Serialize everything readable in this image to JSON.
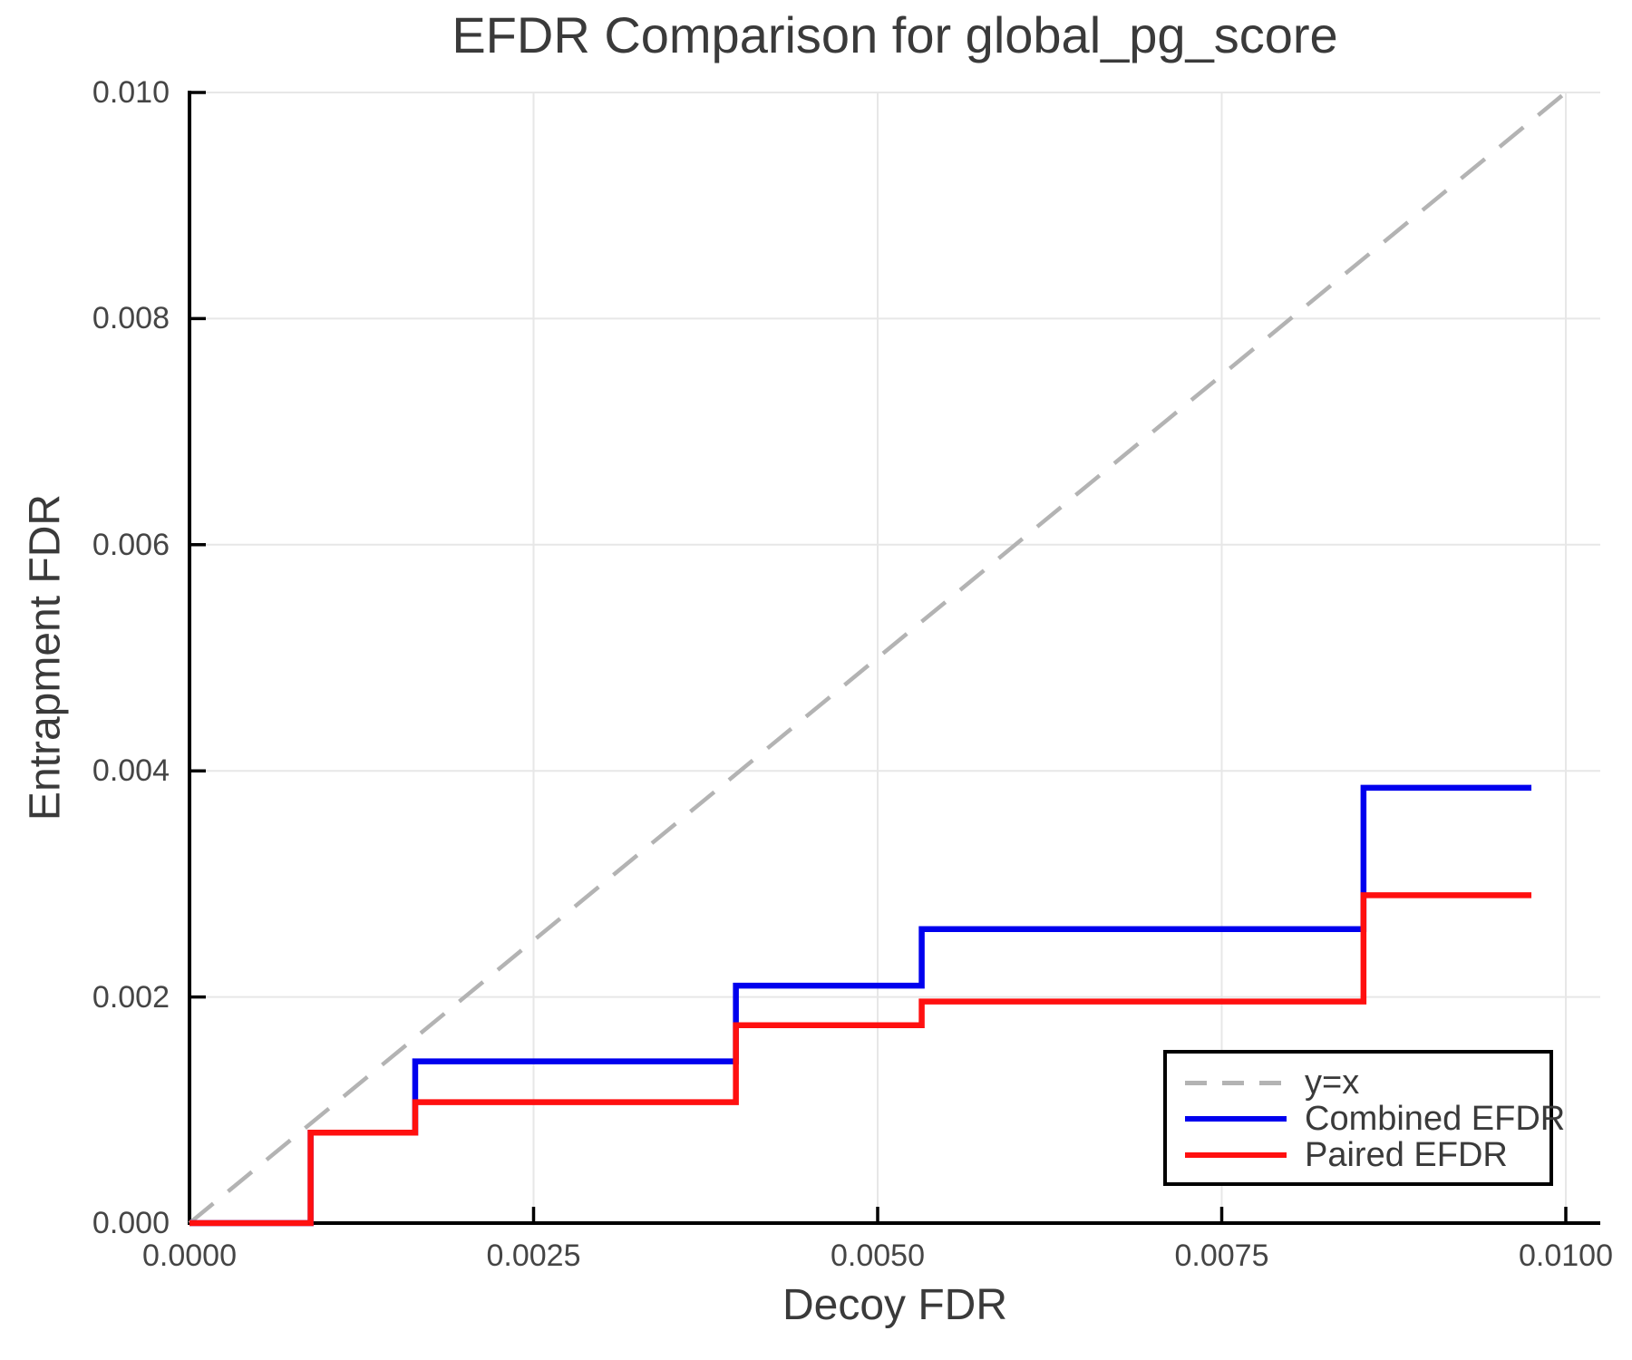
{
  "chart_data": {
    "type": "step",
    "title": "EFDR Comparison for global_pg_score",
    "xlabel": "Decoy FDR",
    "ylabel": "Entrapment FDR",
    "xlim": [
      0.0,
      0.01025
    ],
    "ylim": [
      0.0,
      0.01
    ],
    "grid": true,
    "x_ticks": {
      "values": [
        0.0,
        0.0025,
        0.005,
        0.0075,
        0.01
      ],
      "labels": [
        "0.0000",
        "0.0025",
        "0.0050",
        "0.0075",
        "0.0100"
      ]
    },
    "y_ticks": {
      "values": [
        0.0,
        0.002,
        0.004,
        0.006,
        0.008,
        0.01
      ],
      "labels": [
        "0.000",
        "0.002",
        "0.004",
        "0.006",
        "0.008",
        "0.010"
      ]
    },
    "legend": {
      "position": "lower right",
      "border_color": "#000000",
      "background": "#ffffff"
    },
    "reference_line": {
      "label": "y=x",
      "style": "dashed",
      "color": "#b3b3b3",
      "from": [
        0.0,
        0.0
      ],
      "to": [
        0.01,
        0.01
      ]
    },
    "series": [
      {
        "name": "Combined EFDR",
        "color": "#0000ee",
        "style": "solid",
        "step_points": [
          [
            0.0,
            0.0
          ],
          [
            0.00088,
            0.0008
          ],
          [
            0.00164,
            0.00143
          ],
          [
            0.00397,
            0.0021
          ],
          [
            0.00532,
            0.0026
          ],
          [
            0.00853,
            0.00385
          ],
          [
            0.00975,
            0.00385
          ]
        ]
      },
      {
        "name": "Paired EFDR",
        "color": "#ff1010",
        "style": "solid",
        "step_points": [
          [
            0.0,
            0.0
          ],
          [
            0.00088,
            0.0008
          ],
          [
            0.00164,
            0.00107
          ],
          [
            0.00397,
            0.00175
          ],
          [
            0.00532,
            0.00196
          ],
          [
            0.00853,
            0.0029
          ],
          [
            0.00975,
            0.0029
          ]
        ]
      }
    ],
    "colors": {
      "grid": "#e7e7e7",
      "spine": "#000000",
      "tick_label": "#454545",
      "title": "#3a3a3a"
    }
  }
}
